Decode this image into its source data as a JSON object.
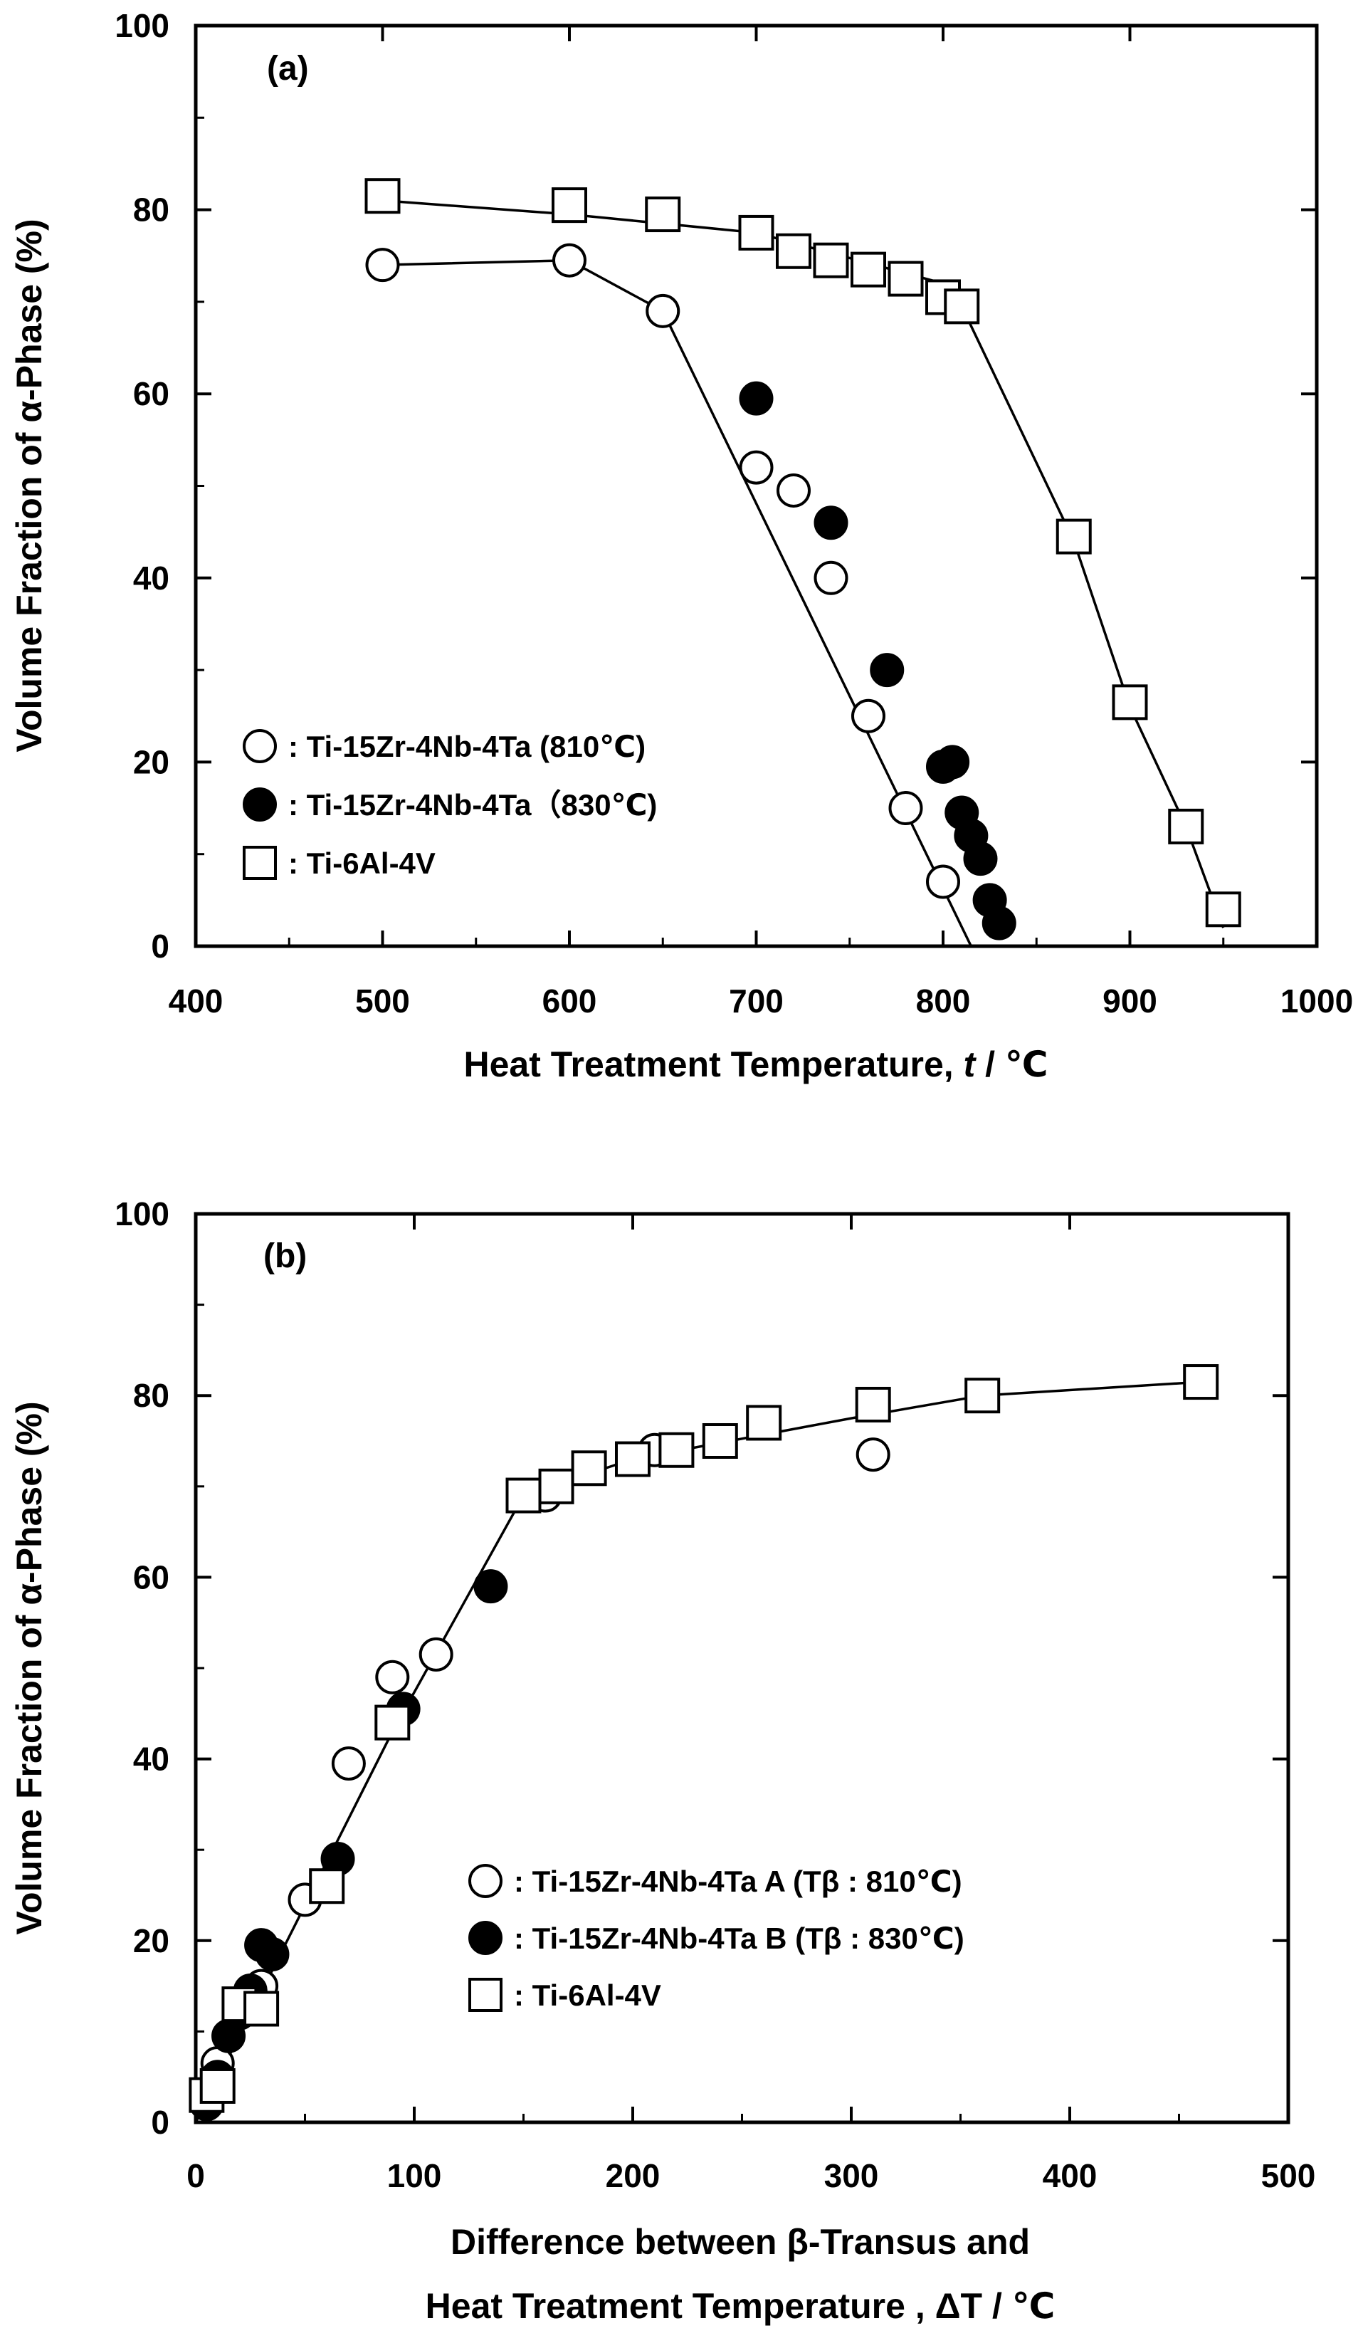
{
  "chart_data": [
    {
      "type": "scatter",
      "panel_label": "(a)",
      "xlabel": "Heat Treatment Temperature,",
      "xlabel_var": "t",
      "xlabel_unit": " / ℃",
      "ylabel": "Volume Fraction of α-Phase (%)",
      "xlim": [
        400,
        1000
      ],
      "ylim": [
        0,
        100
      ],
      "x_ticks": [
        "400",
        "500",
        "600",
        "700",
        "800",
        "900",
        "1000"
      ],
      "y_ticks": [
        "0",
        "20",
        "40",
        "60",
        "80",
        "100"
      ],
      "legend_position": "bottom-left",
      "series": [
        {
          "name": ": Ti-15Zr-4Nb-4Ta (810℃)",
          "marker": "open-circle",
          "points": [
            [
              500,
              74
            ],
            [
              600,
              74.5
            ],
            [
              650,
              69
            ],
            [
              700,
              52
            ],
            [
              720,
              49.5
            ],
            [
              740,
              40
            ],
            [
              760,
              25
            ],
            [
              780,
              15
            ],
            [
              800,
              7
            ]
          ],
          "line": [
            [
              500,
              74
            ],
            [
              600,
              74.5
            ],
            [
              650,
              69
            ],
            [
              815,
              0
            ]
          ]
        },
        {
          "name": ": Ti-15Zr-4Nb-4Ta（830℃)",
          "marker": "filled-circle",
          "points": [
            [
              700,
              59.5
            ],
            [
              740,
              46
            ],
            [
              770,
              30
            ],
            [
              800,
              19.5
            ],
            [
              805,
              20
            ],
            [
              810,
              14.5
            ],
            [
              815,
              12
            ],
            [
              820,
              9.5
            ],
            [
              825,
              5
            ],
            [
              830,
              2.5
            ]
          ],
          "line": []
        },
        {
          "name": ": Ti-6Al-4V",
          "marker": "open-square",
          "points": [
            [
              500,
              81.5
            ],
            [
              600,
              80.5
            ],
            [
              650,
              79.5
            ],
            [
              700,
              77.5
            ],
            [
              720,
              75.5
            ],
            [
              740,
              74.5
            ],
            [
              760,
              73.5
            ],
            [
              780,
              72.5
            ],
            [
              800,
              70.5
            ],
            [
              810,
              69.5
            ],
            [
              870,
              44.5
            ],
            [
              900,
              26.5
            ],
            [
              930,
              13
            ],
            [
              950,
              4
            ]
          ],
          "line": [
            [
              500,
              81
            ],
            [
              600,
              79.5
            ],
            [
              700,
              77.5
            ],
            [
              800,
              72
            ],
            [
              810,
              69.5
            ],
            [
              870,
              44
            ],
            [
              900,
              26
            ],
            [
              930,
              13
            ],
            [
              950,
              2
            ]
          ]
        }
      ]
    },
    {
      "type": "scatter",
      "panel_label": "(b)",
      "xlabel_line1": "Difference between β-Transus  and",
      "xlabel_line2": "Heat Treatment Temperature , ΔT / ℃",
      "ylabel": "Volume Fraction of α-Phase (%)",
      "xlim": [
        0,
        500
      ],
      "ylim": [
        0,
        100
      ],
      "x_ticks": [
        "0",
        "100",
        "200",
        "300",
        "400",
        "500"
      ],
      "y_ticks": [
        "0",
        "20",
        "40",
        "60",
        "80",
        "100"
      ],
      "legend_position": "bottom-right",
      "series": [
        {
          "name": ": Ti-15Zr-4Nb-4Ta A (Tβ : 810℃)",
          "marker": "open-circle",
          "points": [
            [
              10,
              6.5
            ],
            [
              30,
              15
            ],
            [
              50,
              24.5
            ],
            [
              70,
              39.5
            ],
            [
              90,
              49
            ],
            [
              110,
              51.5
            ],
            [
              160,
              69
            ],
            [
              210,
              74
            ],
            [
              310,
              73.5
            ]
          ]
        },
        {
          "name": ": Ti-15Zr-4Nb-4Ta B (Tβ : 830℃)",
          "marker": "filled-circle",
          "points": [
            [
              5,
              2
            ],
            [
              10,
              5
            ],
            [
              15,
              9.5
            ],
            [
              20,
              12
            ],
            [
              25,
              14.5
            ],
            [
              30,
              19.5
            ],
            [
              35,
              18.5
            ],
            [
              65,
              29
            ],
            [
              95,
              45.5
            ],
            [
              135,
              59
            ]
          ]
        },
        {
          "name": ": Ti-6Al-4V",
          "marker": "open-square",
          "points": [
            [
              5,
              3
            ],
            [
              10,
              4
            ],
            [
              20,
              13
            ],
            [
              30,
              12.5
            ],
            [
              60,
              26
            ],
            [
              90,
              44
            ],
            [
              150,
              69
            ],
            [
              165,
              70
            ],
            [
              180,
              72
            ],
            [
              200,
              73
            ],
            [
              220,
              74
            ],
            [
              240,
              75
            ],
            [
              260,
              77
            ],
            [
              310,
              79
            ],
            [
              360,
              80
            ],
            [
              460,
              81.5
            ]
          ],
          "line": [
            [
              0,
              0
            ],
            [
              90,
              43
            ],
            [
              150,
              69
            ],
            [
              200,
              73
            ],
            [
              300,
              77.5
            ],
            [
              360,
              80
            ],
            [
              460,
              81.5
            ]
          ]
        }
      ]
    }
  ]
}
